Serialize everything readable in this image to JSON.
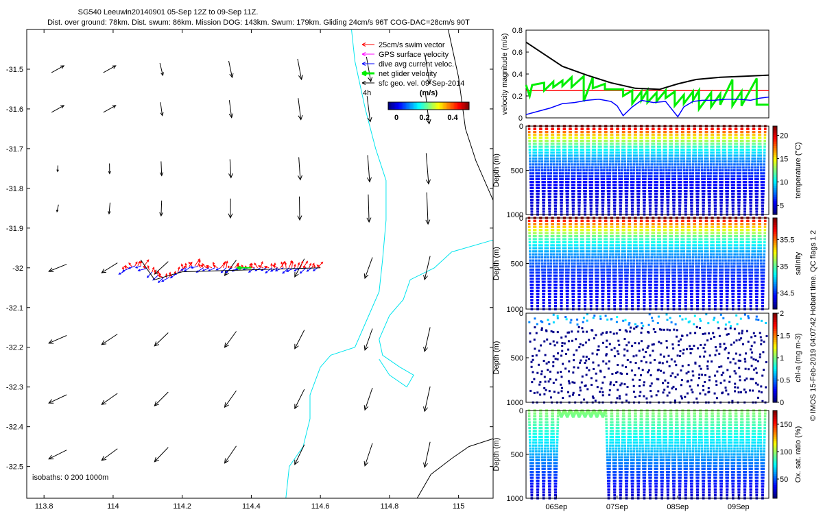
{
  "title": {
    "line1": "SG540 Leeuwin20140901 05-Sep 12Z to 09-Sep 11Z.",
    "line2": "Dist. over ground: 78km. Dist. swum: 86km. Mission DOG: 143km. Swum: 179km. Gliding 24cm/s 96T COG-DAC=28cm/s 90T"
  },
  "credit": "© IMOS 15-Feb-2019 04:07:42 Hobart time. QC flags 1  2",
  "colors": {
    "swim_vector": "#ff0000",
    "gps_velocity": "#ff00ff",
    "dive_avg_current": "#0000ff",
    "net_glider_velocity": "#00ee00",
    "sfc_geo_velocity": "#000000",
    "isobath": "#00e5ee",
    "deep_isobath": "#000000"
  },
  "map": {
    "xlim": [
      113.75,
      115.1
    ],
    "ylim": [
      -32.58,
      -31.4
    ],
    "xticks": [
      "113.8",
      "114",
      "114.2",
      "114.4",
      "114.6",
      "114.8",
      "115"
    ],
    "yticks": [
      "-31.5",
      "-31.6",
      "-31.7",
      "-31.8",
      "-31.9",
      "-32",
      "-32.1",
      "-32.2",
      "-32.3",
      "-32.4",
      "-32.5"
    ],
    "isobaths_label": "isobaths: 0   200  1000m",
    "legend": [
      {
        "label": "25cm/s swim vector",
        "color": "#ff0000"
      },
      {
        "label": "GPS surface velocity",
        "color": "#ff00ff"
      },
      {
        "label": "dive avg current veloc.",
        "color": "#0000ff"
      },
      {
        "label": "net glider velocity",
        "color": "#00ee00"
      },
      {
        "label": "sfc geo. vel. 09-Sep-2014",
        "color": "#000000"
      }
    ],
    "age_label": "4h",
    "colorbar": {
      "title": "(m/s)",
      "ticks": [
        "0",
        "0.2",
        "0.4"
      ],
      "range": [
        0,
        0.5
      ]
    }
  },
  "chart_data": [
    {
      "type": "line",
      "title": "",
      "ylabel": "velocity magnitude (m/s)",
      "ylim": [
        0,
        0.8
      ],
      "yticks": [
        "0",
        "0.2",
        "0.4",
        "0.6",
        "0.8"
      ],
      "xlim": [
        5.5,
        9.5
      ],
      "series": [
        {
          "name": "sfc geo. vel.",
          "color": "#000000",
          "x": [
            5.5,
            5.8,
            6.1,
            6.5,
            6.9,
            7.3,
            7.7,
            8.0,
            8.3,
            8.7,
            9.1,
            9.5
          ],
          "y": [
            0.69,
            0.58,
            0.47,
            0.39,
            0.32,
            0.27,
            0.26,
            0.31,
            0.35,
            0.37,
            0.38,
            0.39
          ]
        },
        {
          "name": "dive avg current",
          "color": "#0000ff",
          "x": [
            5.5,
            5.7,
            5.9,
            6.1,
            6.3,
            6.5,
            6.7,
            6.9,
            7.0,
            7.1,
            7.25,
            7.4,
            7.6,
            7.8,
            7.9,
            8.0,
            8.1,
            8.25,
            8.4,
            8.6,
            8.8,
            9.0,
            9.2,
            9.35,
            9.5
          ],
          "y": [
            0.03,
            0.06,
            0.09,
            0.13,
            0.14,
            0.16,
            0.17,
            0.15,
            0.11,
            0.02,
            0.1,
            0.16,
            0.14,
            0.15,
            0.08,
            0.01,
            0.1,
            0.15,
            0.16,
            0.16,
            0.17,
            0.17,
            0.16,
            0.18,
            0.19
          ]
        },
        {
          "name": "net glider velocity",
          "color": "#00ee00",
          "x": [
            5.5,
            5.56,
            5.6,
            5.8,
            5.8,
            5.95,
            5.95,
            6.1,
            6.1,
            6.25,
            6.25,
            6.45,
            6.45,
            6.6,
            6.6,
            6.8,
            6.8,
            7.1,
            7.1,
            7.25,
            7.25,
            7.4,
            7.4,
            7.5,
            7.5,
            7.65,
            7.65,
            7.8,
            7.8,
            7.95,
            7.95,
            8.1,
            8.1,
            8.25,
            8.25,
            8.35,
            8.35,
            8.55,
            8.55,
            8.7,
            8.7,
            8.9,
            8.9,
            9.05,
            9.05,
            9.3,
            9.3,
            9.5
          ],
          "y": [
            0.3,
            0.2,
            0.3,
            0.32,
            0.25,
            0.33,
            0.28,
            0.34,
            0.29,
            0.37,
            0.28,
            0.38,
            0.15,
            0.37,
            0.27,
            0.31,
            0.26,
            0.26,
            0.2,
            0.25,
            0.13,
            0.24,
            0.16,
            0.25,
            0.14,
            0.23,
            0.15,
            0.25,
            0.18,
            0.24,
            0.11,
            0.21,
            0.13,
            0.24,
            0.16,
            0.25,
            0.08,
            0.23,
            0.1,
            0.22,
            0.12,
            0.35,
            0.11,
            0.24,
            0.11,
            0.36,
            0.12,
            0.12
          ]
        },
        {
          "name": "25cm/s reference",
          "color": "#ff0000",
          "x": [
            5.5,
            9.5
          ],
          "y": [
            0.25,
            0.25
          ]
        }
      ]
    },
    {
      "type": "scatter",
      "ylabel": "Depth (m)",
      "ylim": [
        1000,
        0
      ],
      "yticks": [
        "0",
        "500",
        "1000"
      ],
      "colorbar_label": "temperature (°C)",
      "colorbar_ticks": [
        "5",
        "10",
        "15",
        "20"
      ],
      "color_range": [
        3,
        22
      ],
      "profile": {
        "surface_value": 21.5,
        "deep_value": 4,
        "shape": "exponential"
      },
      "dives": 40,
      "max_depth": 1000
    },
    {
      "type": "scatter",
      "ylabel": "Depth (m)",
      "ylim": [
        1000,
        0
      ],
      "yticks": [
        "0",
        "500",
        "1000"
      ],
      "colorbar_label": "salinity",
      "colorbar_ticks": [
        "34.5",
        "35",
        "35.5"
      ],
      "color_range": [
        34.2,
        35.9
      ],
      "profile": {
        "surface_value": 35.8,
        "deep_value": 34.35,
        "shape": "exponential"
      },
      "dives": 40,
      "max_depth": 1000
    },
    {
      "type": "scatter",
      "ylabel": "Depth (m)",
      "ylim": [
        1000,
        0
      ],
      "yticks": [
        "0",
        "500",
        "1000"
      ],
      "colorbar_label": "chl-a (mg m-3)",
      "colorbar_ticks": [
        "0",
        "0.5",
        "1",
        "1.5",
        "2"
      ],
      "color_range": [
        0,
        2
      ],
      "profile": {
        "surface_value": 0.45,
        "deep_value": 0.0,
        "shape": "sparse"
      },
      "dives": 40,
      "max_depth": 1000
    },
    {
      "type": "scatter",
      "ylabel": "Depth (m)",
      "ylim": [
        1000,
        0
      ],
      "yticks": [
        "0",
        "500",
        "1000"
      ],
      "colorbar_label": "Ox. sat. ratio (%)",
      "colorbar_ticks": [
        "50",
        "100",
        "150"
      ],
      "color_range": [
        15,
        175
      ],
      "profile": {
        "surface_value": 98,
        "deep_value": 25,
        "shape": "linear"
      },
      "dives": 40,
      "max_depth": 1000,
      "shallow_dive_span": [
        6.0,
        6.85
      ],
      "xticks": [
        "06Sep",
        "07Sep",
        "08Sep",
        "09Sep"
      ],
      "xtick_values": [
        6,
        7,
        8,
        9
      ]
    }
  ]
}
